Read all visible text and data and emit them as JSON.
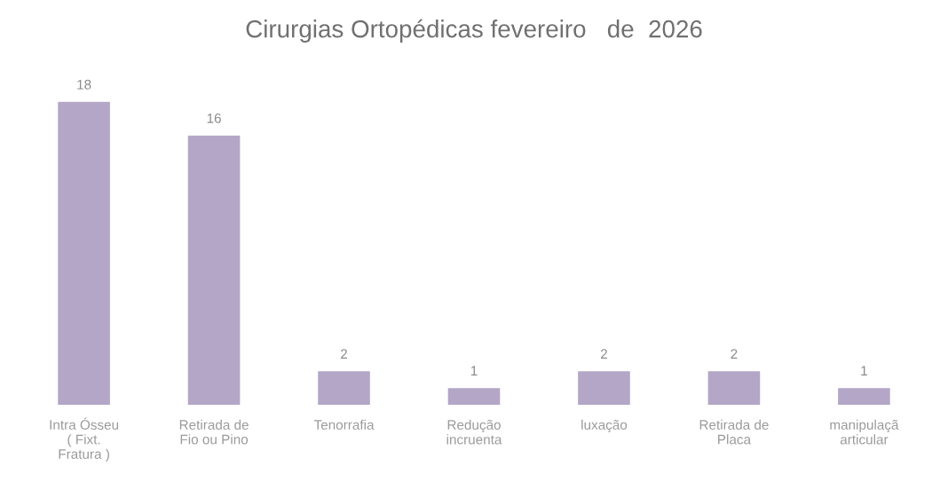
{
  "chart_data": {
    "type": "bar",
    "title": "Cirurgias Ortopédicas fevereiro   de  2026",
    "categories": [
      "Intra Ósseu ( Fixt. Fratura )",
      "Retirada de Fio ou Pino",
      "Tenorrafia",
      "Redução incruenta",
      "luxação",
      "Retirada de Placa",
      "manipulaçã articular"
    ],
    "values": [
      18,
      16,
      2,
      1,
      2,
      2,
      1
    ],
    "color": "#b3a6c6",
    "data_labels": true,
    "grid": false
  }
}
